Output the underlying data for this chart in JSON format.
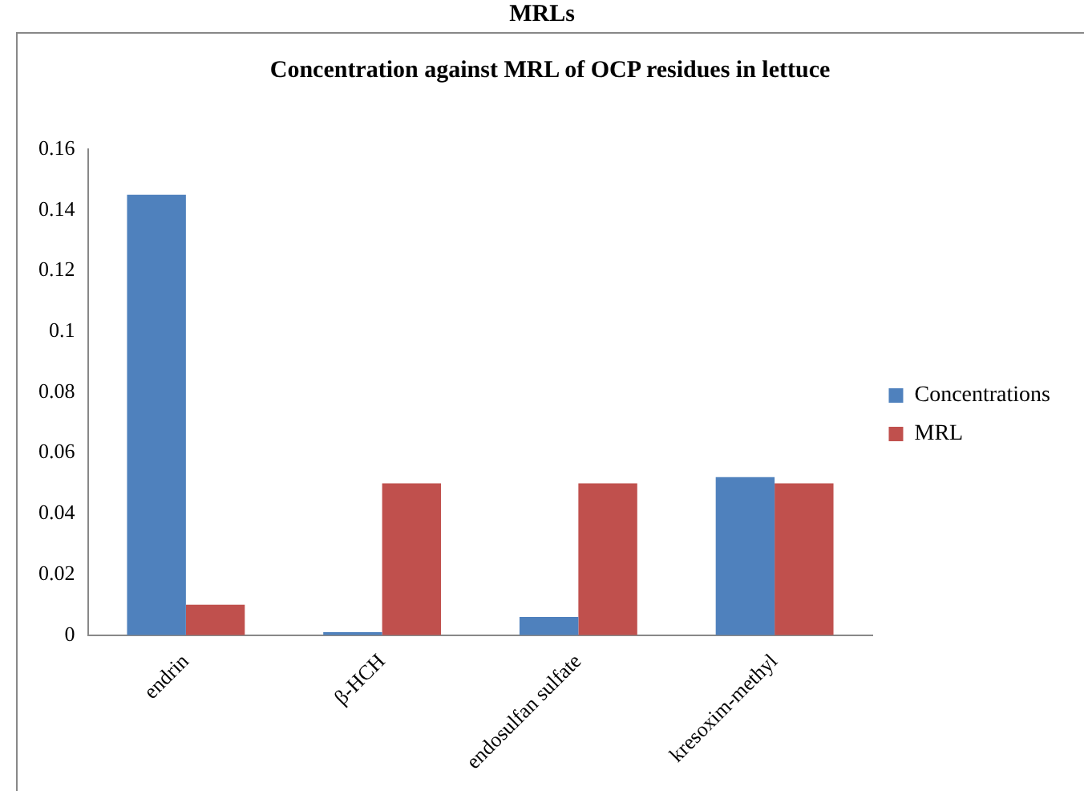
{
  "chart_data": {
    "type": "bar",
    "title": "Concentration against MRL of OCP residues in lettuce",
    "annotations": [
      "MRLs"
    ],
    "categories": [
      "endrin",
      "β-HCH",
      "endosulfan sulfate",
      "kresoxim-methyl"
    ],
    "series": [
      {
        "name": "Concentrations",
        "color": "#4f81bd",
        "values": [
          0.145,
          0.001,
          0.006,
          0.052
        ]
      },
      {
        "name": "MRL",
        "color": "#c0504d",
        "values": [
          0.01,
          0.05,
          0.05,
          0.05
        ]
      }
    ],
    "ylim": [
      0,
      0.16
    ],
    "yticks": [
      0,
      0.02,
      0.04,
      0.06,
      0.08,
      0.1,
      0.12,
      0.14,
      0.16
    ],
    "legend": "right"
  }
}
